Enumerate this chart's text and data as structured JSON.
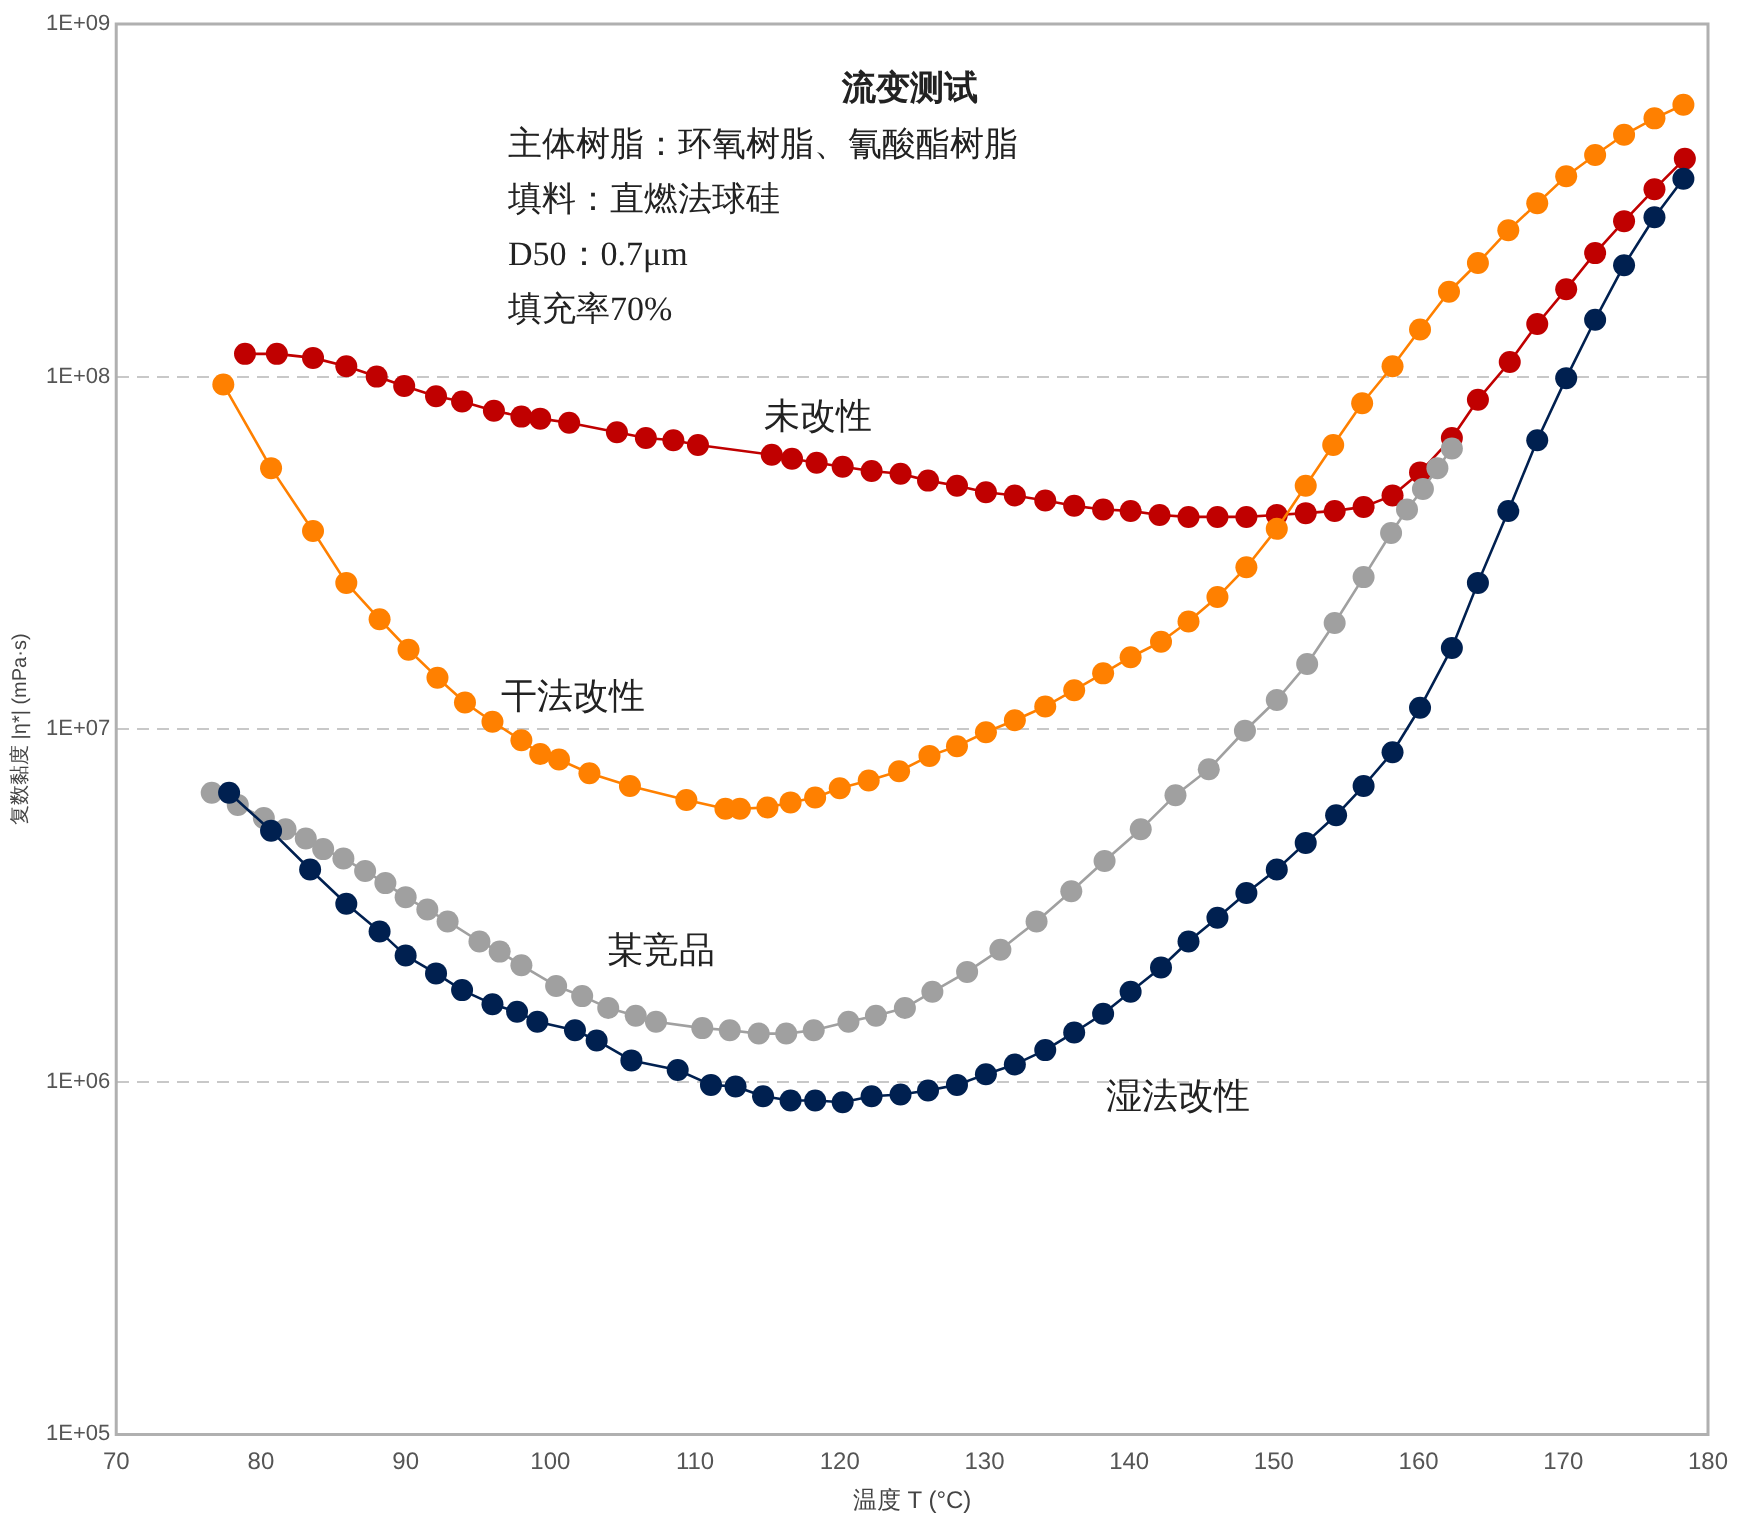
{
  "chart_data": {
    "type": "line",
    "title": "流变测试",
    "xlabel": "温度 T (°C)",
    "ylabel": "复数黏度 |η*| (mPa·s)",
    "annotations": [
      "主体树脂：环氧树脂、氰酸酯树脂",
      "填料：直燃法球硅",
      "D50：0.7μm",
      "填充率70%"
    ],
    "log": "y",
    "grid": "y",
    "legend": false,
    "marker": "circle",
    "line_style": "solid",
    "xlim": [
      70,
      180
    ],
    "xticks": [
      70,
      80,
      90,
      100,
      110,
      120,
      130,
      140,
      150,
      160,
      170,
      180
    ],
    "ylim": [
      100000,
      1000000000
    ],
    "yticks": [
      {
        "value": 100000,
        "label": "1E+05"
      },
      {
        "value": 1000000,
        "label": "1E+06"
      },
      {
        "value": 10000000,
        "label": "1E+07"
      },
      {
        "value": 100000000,
        "label": "1E+08"
      },
      {
        "value": 1000000000,
        "label": "1E+09"
      }
    ],
    "series": [
      {
        "name": "未改性",
        "color": "#c00000",
        "x": [
          78.9,
          81.1,
          83.6,
          85.9,
          88.0,
          89.9,
          92.1,
          93.9,
          96.1,
          98.0,
          99.3,
          101.3,
          104.6,
          106.6,
          108.5,
          110.2,
          115.3,
          116.7,
          118.4,
          120.2,
          122.2,
          124.2,
          126.1,
          128.1,
          130.1,
          132.1,
          134.2,
          136.2,
          138.2,
          140.1,
          142.1,
          144.1,
          146.1,
          148.1,
          150.2,
          152.2,
          154.2,
          156.2,
          158.2,
          160.1,
          162.3,
          164.1,
          166.3,
          168.2,
          170.2,
          172.2,
          174.2,
          176.3,
          178.4
        ],
        "values": [
          116000000,
          116000000,
          113000000,
          107000000,
          100000000,
          94000000,
          88000000,
          85000000,
          80000000,
          77000000,
          76000000,
          74000000,
          69500000,
          67000000,
          66000000,
          64000000,
          60000000,
          58500000,
          57000000,
          55500000,
          54000000,
          53000000,
          50700000,
          49000000,
          47000000,
          46000000,
          44500000,
          43000000,
          42000000,
          41600000,
          40500000,
          40000000,
          40000000,
          40000000,
          40500000,
          41000000,
          41600000,
          42700000,
          46000000,
          53500000,
          67000000,
          86000000,
          110000000,
          141000000,
          177000000,
          224000000,
          276000000,
          340000000,
          415000000
        ]
      },
      {
        "name": "干法改性",
        "color": "#ff8000",
        "x": [
          77.4,
          80.7,
          83.6,
          85.9,
          88.2,
          90.2,
          92.2,
          94.1,
          96.0,
          98.0,
          99.3,
          100.6,
          102.7,
          105.5,
          109.4,
          112.1,
          113.1,
          115.0,
          116.6,
          118.3,
          120.0,
          122.0,
          124.1,
          126.2,
          128.1,
          130.1,
          132.1,
          134.2,
          136.2,
          138.2,
          140.1,
          142.2,
          144.1,
          146.1,
          148.1,
          150.2,
          152.2,
          154.1,
          156.1,
          158.2,
          160.1,
          162.1,
          164.1,
          166.2,
          168.2,
          170.2,
          172.2,
          174.2,
          176.3,
          178.3
        ],
        "values": [
          95000000,
          55000000,
          36500000,
          26000000,
          20500000,
          16800000,
          14000000,
          11900000,
          10500000,
          9300000,
          8500000,
          8200000,
          7500000,
          6900000,
          6300000,
          5950000,
          5950000,
          6000000,
          6200000,
          6400000,
          6800000,
          7150000,
          7600000,
          8400000,
          8950000,
          9800000,
          10600000,
          11600000,
          12900000,
          14400000,
          16000000,
          17700000,
          20200000,
          23700000,
          28800000,
          37000000,
          49000000,
          64000000,
          84000000,
          107000000,
          136000000,
          174000000,
          210000000,
          260000000,
          310000000,
          370000000,
          425000000,
          485000000,
          540000000,
          590000000
        ]
      },
      {
        "name": "某竞品",
        "color": "#a0a0a0",
        "x": [
          76.6,
          78.4,
          80.2,
          81.7,
          83.1,
          84.3,
          85.7,
          87.2,
          88.6,
          90.0,
          91.5,
          92.9,
          95.1,
          96.5,
          98.0,
          100.4,
          102.2,
          104.0,
          105.9,
          107.3,
          110.5,
          112.4,
          114.4,
          116.3,
          118.2,
          120.6,
          122.5,
          124.5,
          126.4,
          128.8,
          131.1,
          133.6,
          136.0,
          138.3,
          140.8,
          143.2,
          145.5,
          148.0,
          150.2,
          152.3,
          154.2,
          156.2,
          158.1,
          159.2,
          160.3,
          161.3,
          162.3
        ],
        "values": [
          6600000,
          6100000,
          5600000,
          5200000,
          4900000,
          4570000,
          4300000,
          3960000,
          3660000,
          3340000,
          3080000,
          2850000,
          2500000,
          2340000,
          2140000,
          1870000,
          1750000,
          1620000,
          1540000,
          1480000,
          1420000,
          1400000,
          1370000,
          1370000,
          1400000,
          1480000,
          1540000,
          1620000,
          1800000,
          2050000,
          2370000,
          2850000,
          3470000,
          4230000,
          5200000,
          6500000,
          7700000,
          9900000,
          12100000,
          15300000,
          20000000,
          27000000,
          36000000,
          42000000,
          48000000,
          55000000,
          62500000
        ]
      },
      {
        "name": "湿法改性",
        "color": "#002050",
        "x": [
          77.8,
          80.7,
          83.4,
          85.9,
          88.2,
          90.0,
          92.1,
          93.9,
          96.0,
          97.7,
          99.1,
          101.7,
          103.2,
          105.6,
          108.8,
          111.1,
          112.8,
          114.7,
          116.6,
          118.3,
          120.2,
          122.2,
          124.2,
          126.1,
          128.1,
          130.1,
          132.1,
          134.2,
          136.2,
          138.2,
          140.1,
          142.2,
          144.1,
          146.1,
          148.1,
          150.2,
          152.2,
          154.3,
          156.2,
          158.2,
          160.1,
          162.3,
          164.1,
          166.2,
          168.2,
          170.2,
          172.2,
          174.2,
          176.3,
          178.3
        ],
        "values": [
          6600000,
          5150000,
          4000000,
          3200000,
          2670000,
          2280000,
          2030000,
          1820000,
          1660000,
          1580000,
          1480000,
          1400000,
          1310000,
          1150000,
          1080000,
          980000,
          970000,
          910000,
          885000,
          885000,
          875000,
          910000,
          920000,
          945000,
          980000,
          1050000,
          1120000,
          1230000,
          1380000,
          1560000,
          1800000,
          2110000,
          2500000,
          2920000,
          3430000,
          4000000,
          4760000,
          5700000,
          6900000,
          8600000,
          11500000,
          17000000,
          26000000,
          41600000,
          66000000,
          99000000,
          145000000,
          207000000,
          283000000,
          364000000
        ]
      }
    ]
  }
}
